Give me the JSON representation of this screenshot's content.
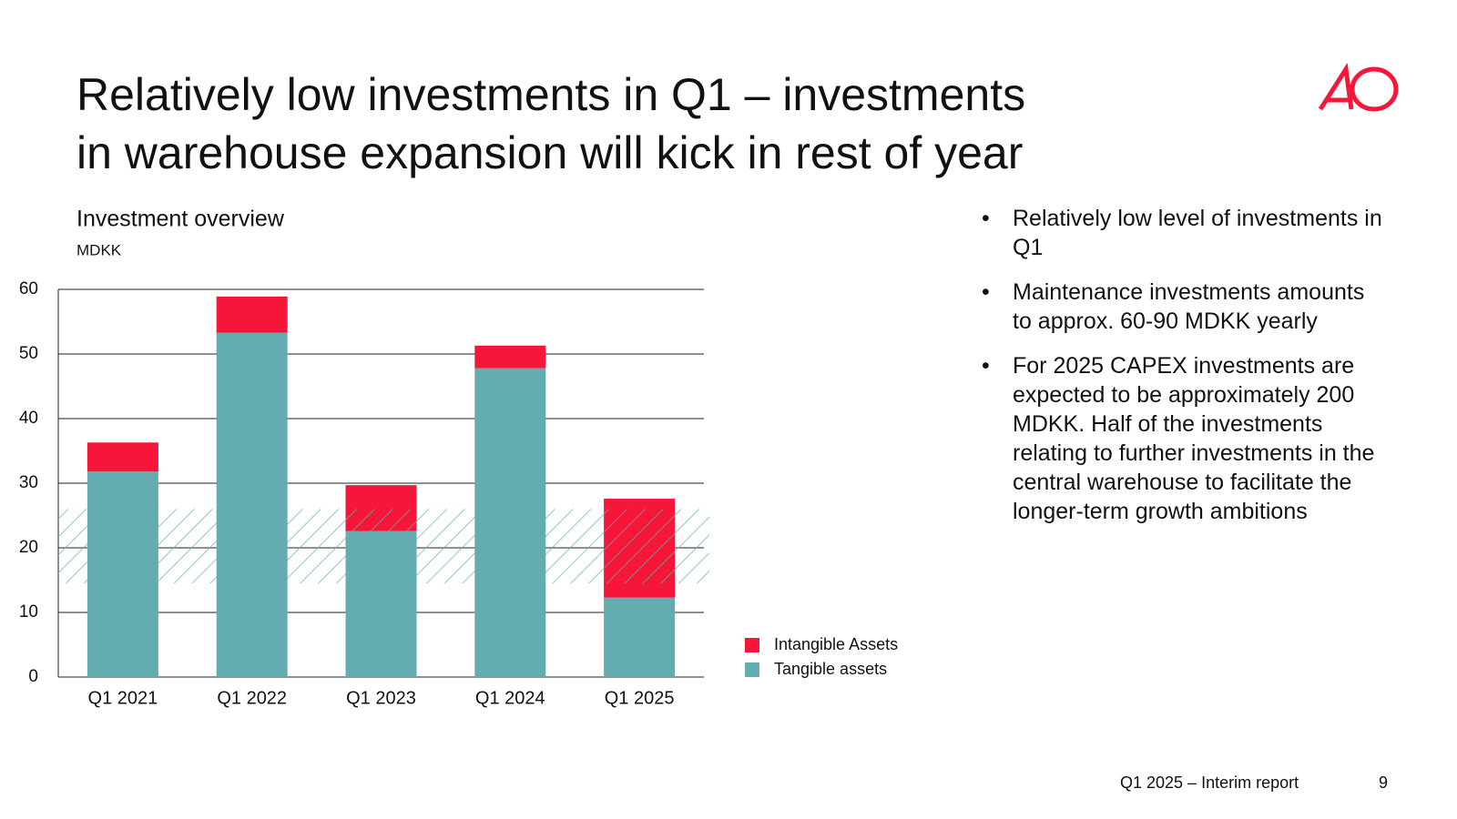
{
  "title_lines": [
    "Relatively low investments in Q1 – investments",
    "in warehouse expansion will kick in rest of year"
  ],
  "chart_data": {
    "type": "stacked_bar",
    "title": "Investment overview",
    "subtitle": "MDKK",
    "categories": [
      "Q1 2021",
      "Q1 2022",
      "Q1 2023",
      "Q1 2024",
      "Q1 2025"
    ],
    "series": [
      {
        "name": "Intangible Assets",
        "color": "#f5163a",
        "values": [
          4.5,
          5.6,
          7.1,
          3.5,
          15.3
        ]
      },
      {
        "name": "Tangible assets",
        "color": "#63adb1",
        "values": [
          31.8,
          53.3,
          22.6,
          47.8,
          12.3
        ]
      }
    ],
    "shaded_range": [
      14.5,
      26
    ],
    "ylim": [
      0,
      60
    ],
    "yticks": [
      0,
      10,
      20,
      30,
      40,
      50,
      60
    ],
    "grid": true
  },
  "bullets": [
    "Relatively low level of investments in Q1",
    "Maintenance investments amounts to approx. 60-90 MDKK yearly",
    "For 2025 CAPEX investments are expected to be approximately 200 MDKK. Half of the investments relating to further investments in the central warehouse to facilitate the longer-term growth ambitions"
  ],
  "footer": {
    "report": "Q1 2025 – Interim report",
    "page": "9"
  }
}
